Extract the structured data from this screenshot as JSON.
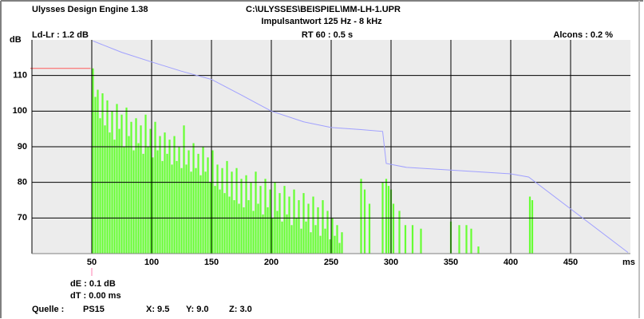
{
  "chart_data": {
    "type": "bar",
    "title": "Ulysses Design Engine 1.38",
    "file": "C:\\ULYSSES\\BEISPIEL\\MM-LH-1.UPR",
    "subtitle": "Impulsantwort",
    "band": "125 Hz - 8 kHz",
    "stats": [
      "Ld-Lr : 1.2 dB",
      "RT 60 : 0.5 s",
      "Alcons : 0.2 %"
    ],
    "y_label": "dB",
    "x_label": "ms",
    "cursor": [
      "dE : 0.1 dB",
      "dT : 0.00 ms"
    ],
    "source_label": "Quelle :",
    "source": "PS15",
    "coords": [
      "X: 9.5",
      "Y: 9.0",
      "Z: 3.0"
    ],
    "xlim": [
      0,
      500
    ],
    "ylim": [
      60,
      120
    ],
    "xticks": [
      50,
      100,
      150,
      200,
      250,
      300,
      350,
      400,
      450
    ],
    "yticks": [
      70,
      80,
      90,
      100,
      110
    ],
    "grid": true,
    "background": "#ececec",
    "reference_level": {
      "value": 112,
      "x_end": 49,
      "color": "#ff5a5a"
    },
    "cursor_x": 50,
    "cursor_color": "#ff80b0",
    "series": [
      {
        "type": "bar",
        "color": "#66ff33",
        "x": [
          51,
          53,
          55,
          57,
          59,
          61,
          63,
          65,
          67,
          69,
          71,
          73,
          75,
          77,
          79,
          81,
          83,
          85,
          87,
          89,
          91,
          93,
          95,
          97,
          99,
          101,
          103,
          105,
          107,
          109,
          111,
          113,
          115,
          117,
          119,
          121,
          123,
          125,
          127,
          129,
          131,
          133,
          135,
          137,
          139,
          141,
          143,
          145,
          147,
          149,
          151,
          153,
          155,
          157,
          159,
          161,
          163,
          165,
          167,
          169,
          171,
          173,
          175,
          177,
          179,
          181,
          183,
          185,
          187,
          189,
          191,
          193,
          195,
          197,
          199,
          201,
          203,
          205,
          207,
          209,
          211,
          213,
          215,
          217,
          219,
          221,
          223,
          225,
          227,
          229,
          231,
          233,
          235,
          237,
          239,
          241,
          243,
          245,
          247,
          249,
          251,
          253,
          255,
          257,
          259,
          275,
          278,
          282,
          293,
          296,
          298,
          300,
          302,
          307,
          312,
          318,
          325,
          350,
          357,
          363,
          367,
          373,
          416,
          418
        ],
        "values": [
          112,
          104,
          106,
          98,
          105,
          96,
          103,
          94,
          100,
          92,
          102,
          95,
          99,
          90,
          101,
          93,
          97,
          89,
          98,
          91,
          96,
          88,
          99,
          90,
          95,
          87,
          97,
          89,
          93,
          86,
          94,
          88,
          92,
          85,
          93,
          86,
          90,
          84,
          96,
          85,
          89,
          83,
          91,
          84,
          88,
          82,
          90,
          83,
          87,
          80,
          89,
          79,
          85,
          78,
          84,
          77,
          86,
          76,
          83,
          75,
          84,
          74,
          81,
          73,
          82,
          75,
          80,
          72,
          83,
          74,
          79,
          71,
          81,
          73,
          78,
          70,
          80,
          72,
          77,
          69,
          79,
          71,
          76,
          68,
          78,
          70,
          75,
          67,
          77,
          69,
          74,
          66,
          76,
          68,
          73,
          65,
          75,
          67,
          72,
          64,
          70,
          65,
          68,
          63,
          66,
          81,
          78,
          74,
          80,
          81,
          79,
          78,
          74,
          72,
          68,
          68,
          67,
          69,
          68,
          68,
          67,
          62,
          76,
          75
        ]
      },
      {
        "type": "line",
        "color": "#a0a0ff",
        "x": [
          51,
          75,
          100,
          125,
          150,
          175,
          200,
          227,
          250,
          275,
          293,
          296,
          313,
          347,
          400,
          415,
          498
        ],
        "values": [
          119.7,
          116.5,
          113.8,
          111.2,
          108.9,
          104.5,
          100,
          97,
          95.4,
          94.8,
          94.3,
          85.3,
          84.2,
          83.5,
          82.4,
          81.5,
          60.3
        ]
      }
    ]
  }
}
